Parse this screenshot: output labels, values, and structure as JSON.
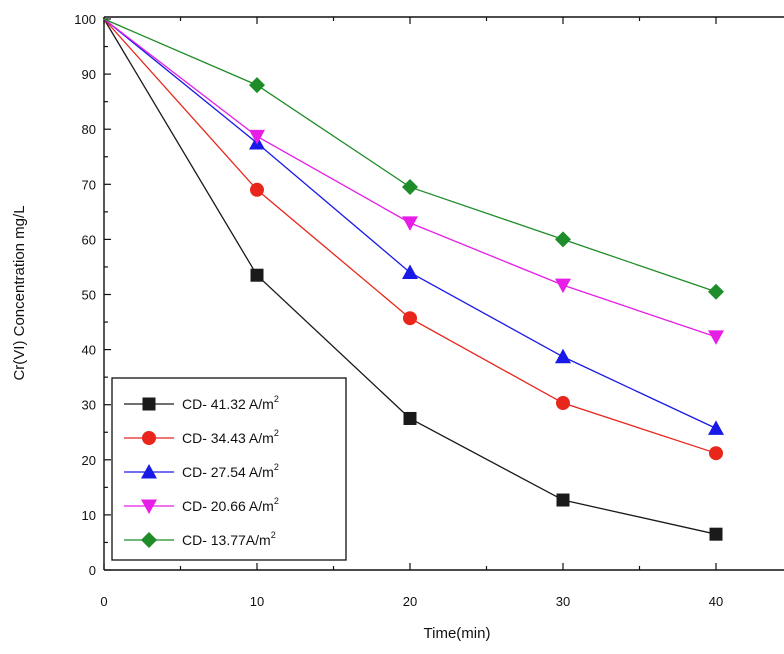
{
  "chart_data": {
    "type": "line",
    "title": "",
    "xlabel": "Time(min)",
    "ylabel": "Cr(VI) Concentration mg/L",
    "x": [
      0,
      10,
      20,
      30,
      40
    ],
    "xlim": [
      0,
      45
    ],
    "ylim": [
      0,
      100
    ],
    "xticks": [
      0,
      10,
      20,
      30,
      40
    ],
    "yticks": [
      0,
      10,
      20,
      30,
      40,
      50,
      60,
      70,
      80,
      90,
      100
    ],
    "grid": false,
    "legend_position": "bottom-left",
    "series": [
      {
        "name": "CD- 41.32 A/m",
        "superscript": "2",
        "marker": "square",
        "color": "#1a1a1a",
        "values": [
          100,
          53.5,
          27.5,
          12.7,
          6.5
        ]
      },
      {
        "name": "CD- 34.43 A/m",
        "superscript": "2",
        "marker": "circle",
        "color": "#e8261c",
        "values": [
          100,
          69,
          45.7,
          30.3,
          21.2
        ]
      },
      {
        "name": "CD- 27.54 A/m",
        "superscript": "2",
        "marker": "triangle-up",
        "color": "#1a1ae6",
        "values": [
          100,
          77.5,
          54,
          38.7,
          25.7
        ]
      },
      {
        "name": "CD- 20.66 A/m",
        "superscript": "2",
        "marker": "triangle-down",
        "color": "#e61ee6",
        "values": [
          100,
          78.7,
          63,
          51.7,
          42.3
        ]
      },
      {
        "name": "CD- 13.77A/m",
        "superscript": "2",
        "marker": "diamond",
        "color": "#1e8c28",
        "values": [
          100,
          88,
          69.5,
          60,
          50.5
        ]
      }
    ]
  }
}
